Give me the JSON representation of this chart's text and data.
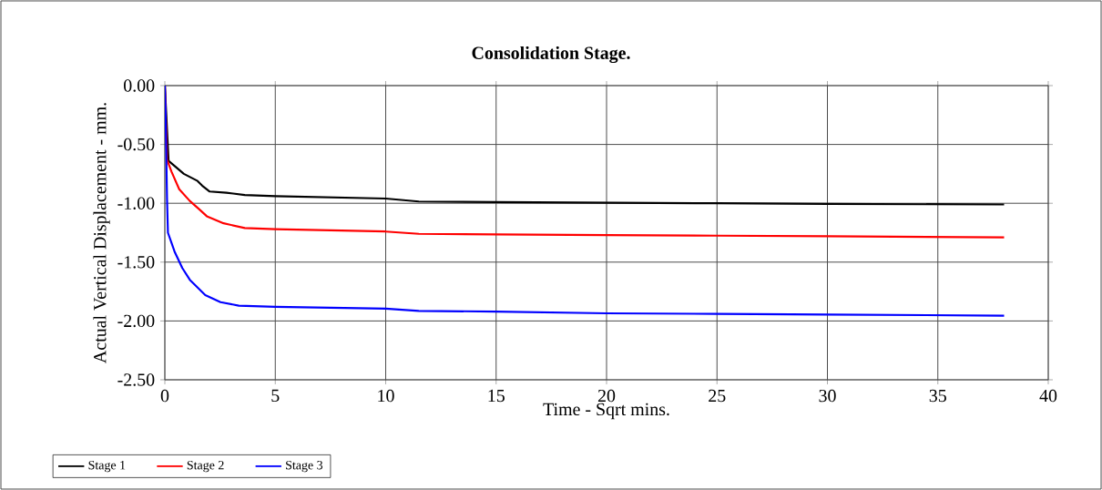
{
  "chart_data": {
    "type": "line",
    "title": "Consolidation Stage.",
    "xlabel": "Time - Sqrt mins.",
    "ylabel": "Actual Vertical Displacement - mm.",
    "series": [
      {
        "name": "Stage 1",
        "color": "#000000",
        "x": [
          0,
          0.17,
          0.86,
          1.48,
          1.69,
          2.03,
          2.79,
          3.62,
          5,
          10,
          11.5,
          15,
          20,
          25,
          30,
          38
        ],
        "values": [
          0,
          -0.64,
          -0.75,
          -0.81,
          -0.85,
          -0.9,
          -0.91,
          -0.93,
          -0.94,
          -0.96,
          -0.985,
          -0.99,
          -0.995,
          -1.0,
          -1.005,
          -1.01
        ]
      },
      {
        "name": "Stage 2",
        "color": "#ff0000",
        "x": [
          0,
          0.05,
          0.1,
          0.3,
          0.65,
          1.13,
          1.55,
          1.9,
          2.66,
          3.62,
          5,
          10,
          11.5,
          15,
          20,
          25,
          30,
          38
        ],
        "values": [
          0,
          null,
          -0.63,
          -0.73,
          -0.88,
          -0.98,
          -1.05,
          -1.11,
          -1.17,
          -1.21,
          -1.22,
          -1.24,
          -1.26,
          -1.265,
          -1.27,
          -1.275,
          -1.28,
          -1.29
        ]
      },
      {
        "name": "Stage 3",
        "color": "#0000ff",
        "x": [
          0,
          0.03,
          0.1,
          0.14,
          0.44,
          0.79,
          1.13,
          1.83,
          2.52,
          3.35,
          5,
          10,
          11.5,
          15,
          20,
          25,
          30,
          38
        ],
        "values": [
          0,
          -0.19,
          -0.97,
          -1.25,
          -1.41,
          -1.55,
          -1.65,
          -1.78,
          -1.84,
          -1.87,
          -1.88,
          -1.895,
          -1.915,
          -1.92,
          -1.935,
          -1.94,
          -1.945,
          -1.955
        ]
      }
    ],
    "xlim": [
      0,
      40
    ],
    "xticks": [
      0,
      5,
      10,
      15,
      20,
      25,
      30,
      35,
      40
    ],
    "ylim": [
      -2.5,
      0
    ],
    "yticks": [
      {
        "value": -2.5,
        "label": "-2.50"
      },
      {
        "value": -2.0,
        "label": "-2.00"
      },
      {
        "value": -1.5,
        "label": "-1.50"
      },
      {
        "value": -1.0,
        "label": "-1.00"
      },
      {
        "value": -0.5,
        "label": "-0.50"
      },
      {
        "value": 0,
        "label": "0.00"
      }
    ],
    "grid": true,
    "legend": "bottom",
    "marker": "none",
    "line_style": "solid"
  }
}
